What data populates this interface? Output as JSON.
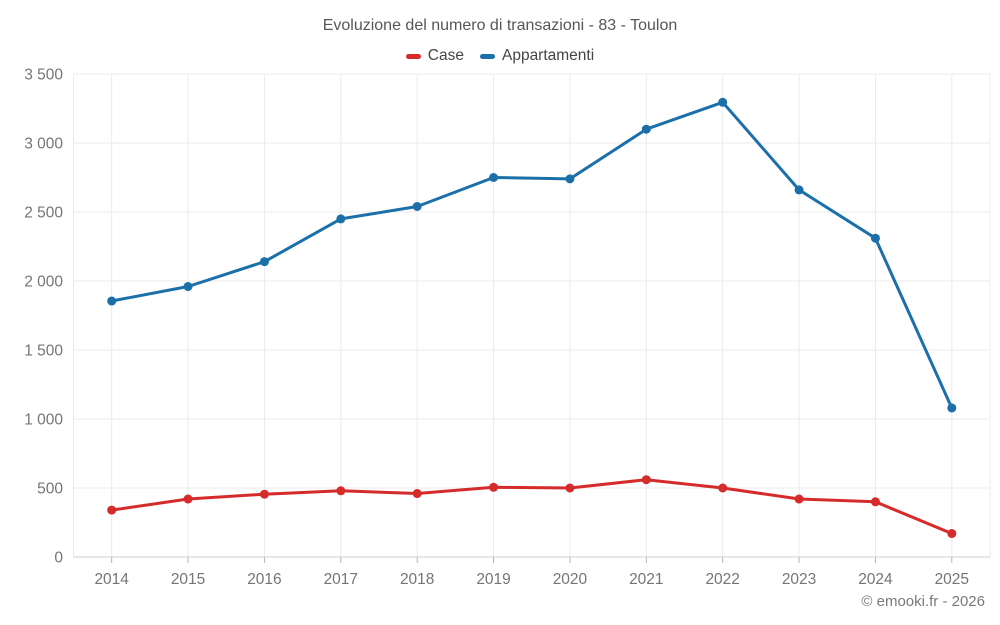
{
  "title": "Evoluzione del numero di transazioni - 83 - Toulon",
  "footer": "© emooki.fr - 2026",
  "chart_data": {
    "type": "line",
    "categories": [
      "2014",
      "2015",
      "2016",
      "2017",
      "2018",
      "2019",
      "2020",
      "2021",
      "2022",
      "2023",
      "2024",
      "2025"
    ],
    "series": [
      {
        "name": "Case",
        "color": "#d62b2b",
        "values": [
          340,
          420,
          455,
          480,
          460,
          505,
          500,
          560,
          500,
          420,
          400,
          170
        ]
      },
      {
        "name": "Appartamenti",
        "color": "#1c70aa",
        "values": [
          1855,
          1960,
          2140,
          2450,
          2540,
          2750,
          2740,
          3100,
          3295,
          2660,
          2310,
          1080
        ]
      }
    ],
    "title": "Evoluzione del numero di transazioni - 83 - Toulon",
    "xlabel": "",
    "ylabel": "",
    "ylim": [
      0,
      3500
    ],
    "ytick_step": 500,
    "ytick_labels": [
      "0",
      "500",
      "1 000",
      "1 500",
      "2 000",
      "2 500",
      "3 000",
      "3 500"
    ],
    "grid": true,
    "legend_position": "top",
    "colors": {
      "gridline": "#ebebeb",
      "baseline": "#cfcfcf",
      "tick": "#b3b3b3",
      "tick_label": "#757575"
    }
  }
}
